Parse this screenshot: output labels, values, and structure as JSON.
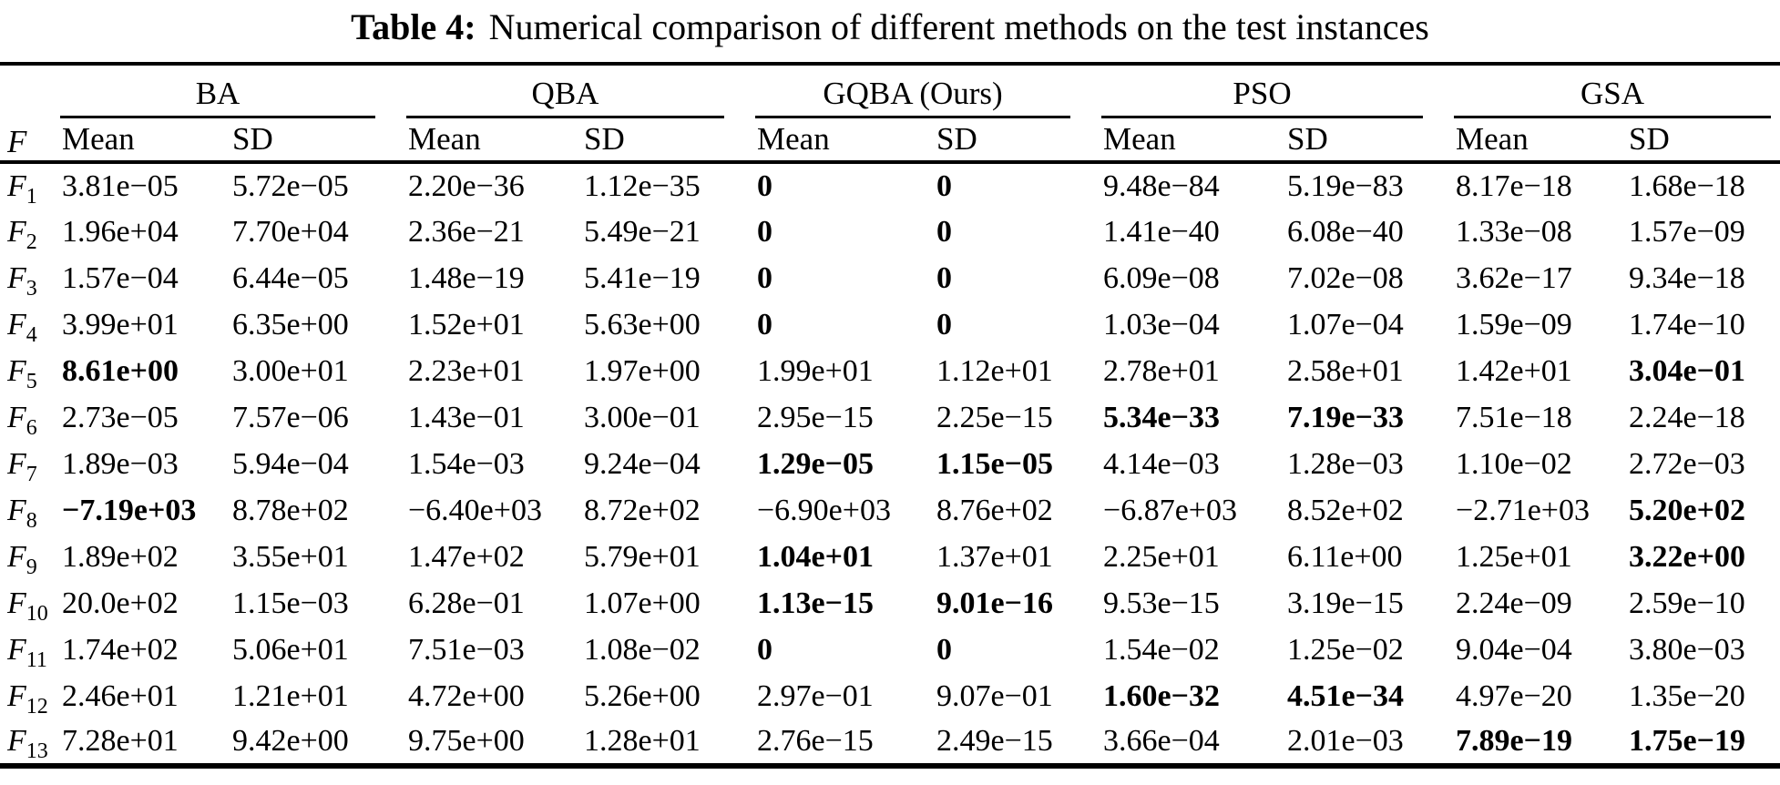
{
  "caption": {
    "label": "Table 4:",
    "text": "Numerical comparison of different methods on the test instances"
  },
  "table": {
    "f_header": "F",
    "mean_label": "Mean",
    "sd_label": "SD",
    "groups": [
      {
        "name": "BA"
      },
      {
        "name": "QBA"
      },
      {
        "name": "GQBA (Ours)"
      },
      {
        "name": "PSO"
      },
      {
        "name": "GSA"
      }
    ],
    "rows": [
      {
        "label": "F",
        "sub": "1",
        "values": [
          "3.81e−05",
          "5.72e−05",
          "2.20e−36",
          "1.12e−35",
          "0",
          "0",
          "9.48e−84",
          "5.19e−83",
          "8.17e−18",
          "1.68e−18"
        ],
        "bold": [
          4,
          5
        ]
      },
      {
        "label": "F",
        "sub": "2",
        "values": [
          "1.96e+04",
          "7.70e+04",
          "2.36e−21",
          "5.49e−21",
          "0",
          "0",
          "1.41e−40",
          "6.08e−40",
          "1.33e−08",
          "1.57e−09"
        ],
        "bold": [
          4,
          5
        ]
      },
      {
        "label": "F",
        "sub": "3",
        "values": [
          "1.57e−04",
          "6.44e−05",
          "1.48e−19",
          "5.41e−19",
          "0",
          "0",
          "6.09e−08",
          "7.02e−08",
          "3.62e−17",
          "9.34e−18"
        ],
        "bold": [
          4,
          5
        ]
      },
      {
        "label": "F",
        "sub": "4",
        "values": [
          "3.99e+01",
          "6.35e+00",
          "1.52e+01",
          "5.63e+00",
          "0",
          "0",
          "1.03e−04",
          "1.07e−04",
          "1.59e−09",
          "1.74e−10"
        ],
        "bold": [
          4,
          5
        ]
      },
      {
        "label": "F",
        "sub": "5",
        "values": [
          "8.61e+00",
          "3.00e+01",
          "2.23e+01",
          "1.97e+00",
          "1.99e+01",
          "1.12e+01",
          "2.78e+01",
          "2.58e+01",
          "1.42e+01",
          "3.04e−01"
        ],
        "bold": [
          0,
          9
        ]
      },
      {
        "label": "F",
        "sub": "6",
        "values": [
          "2.73e−05",
          "7.57e−06",
          "1.43e−01",
          "3.00e−01",
          "2.95e−15",
          "2.25e−15",
          "5.34e−33",
          "7.19e−33",
          "7.51e−18",
          "2.24e−18"
        ],
        "bold": [
          6,
          7
        ]
      },
      {
        "label": "F",
        "sub": "7",
        "values": [
          "1.89e−03",
          "5.94e−04",
          "1.54e−03",
          "9.24e−04",
          "1.29e−05",
          "1.15e−05",
          "4.14e−03",
          "1.28e−03",
          "1.10e−02",
          "2.72e−03"
        ],
        "bold": [
          4,
          5
        ]
      },
      {
        "label": "F",
        "sub": "8",
        "values": [
          "−7.19e+03",
          "8.78e+02",
          "−6.40e+03",
          "8.72e+02",
          "−6.90e+03",
          "8.76e+02",
          "−6.87e+03",
          "8.52e+02",
          "−2.71e+03",
          "5.20e+02"
        ],
        "bold": [
          0,
          9
        ]
      },
      {
        "label": "F",
        "sub": "9",
        "values": [
          "1.89e+02",
          "3.55e+01",
          "1.47e+02",
          "5.79e+01",
          "1.04e+01",
          "1.37e+01",
          "2.25e+01",
          "6.11e+00",
          "1.25e+01",
          "3.22e+00"
        ],
        "bold": [
          4,
          9
        ]
      },
      {
        "label": "F",
        "sub": "10",
        "values": [
          "20.0e+02",
          "1.15e−03",
          "6.28e−01",
          "1.07e+00",
          "1.13e−15",
          "9.01e−16",
          "9.53e−15",
          "3.19e−15",
          "2.24e−09",
          "2.59e−10"
        ],
        "bold": [
          4,
          5
        ]
      },
      {
        "label": "F",
        "sub": "11",
        "values": [
          "1.74e+02",
          "5.06e+01",
          "7.51e−03",
          "1.08e−02",
          "0",
          "0",
          "1.54e−02",
          "1.25e−02",
          "9.04e−04",
          "3.80e−03"
        ],
        "bold": [
          4,
          5
        ]
      },
      {
        "label": "F",
        "sub": "12",
        "values": [
          "2.46e+01",
          "1.21e+01",
          "4.72e+00",
          "5.26e+00",
          "2.97e−01",
          "9.07e−01",
          "1.60e−32",
          "4.51e−34",
          "4.97e−20",
          "1.35e−20"
        ],
        "bold": [
          6,
          7
        ]
      },
      {
        "label": "F",
        "sub": "13",
        "values": [
          "7.28e+01",
          "9.42e+00",
          "9.75e+00",
          "1.28e+01",
          "2.76e−15",
          "2.49e−15",
          "3.66e−04",
          "2.01e−03",
          "7.89e−19",
          "1.75e−19"
        ],
        "bold": [
          8,
          9
        ]
      }
    ]
  }
}
